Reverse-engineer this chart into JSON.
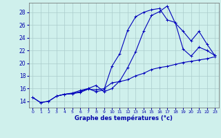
{
  "xlabel": "Graphe des températures (°c)",
  "background_color": "#cff0ec",
  "grid_color": "#aacccc",
  "line_color": "#0000bb",
  "xlim": [
    -0.5,
    23.5
  ],
  "ylim": [
    13.0,
    29.5
  ],
  "yticks": [
    14,
    16,
    18,
    20,
    22,
    24,
    26,
    28
  ],
  "xticks": [
    0,
    1,
    2,
    3,
    4,
    5,
    6,
    7,
    8,
    9,
    10,
    11,
    12,
    13,
    14,
    15,
    16,
    17,
    18,
    19,
    20,
    21,
    22,
    23
  ],
  "line1_x": [
    0,
    1,
    2,
    3,
    4,
    5,
    6,
    7,
    8,
    9,
    10,
    11,
    12,
    13,
    14,
    15,
    16,
    17,
    18,
    19,
    20,
    21,
    22,
    23
  ],
  "line1_y": [
    14.6,
    13.8,
    14.0,
    14.8,
    15.1,
    15.2,
    15.4,
    15.9,
    15.8,
    16.0,
    16.9,
    17.1,
    17.4,
    18.0,
    18.4,
    19.0,
    19.3,
    19.5,
    19.8,
    20.1,
    20.3,
    20.5,
    20.7,
    21.0
  ],
  "line2_x": [
    0,
    1,
    2,
    3,
    4,
    5,
    6,
    7,
    8,
    9,
    10,
    11,
    12,
    13,
    14,
    15,
    16,
    17,
    18,
    19,
    20,
    21,
    22,
    23
  ],
  "line2_y": [
    14.6,
    13.8,
    14.0,
    14.8,
    15.1,
    15.2,
    15.5,
    16.0,
    15.5,
    15.8,
    19.5,
    21.5,
    25.2,
    27.3,
    28.0,
    28.4,
    28.6,
    26.8,
    26.4,
    22.2,
    21.1,
    22.5,
    22.0,
    21.2
  ],
  "line3_x": [
    3,
    4,
    5,
    6,
    7,
    8,
    9,
    10,
    11,
    12,
    13,
    14,
    15,
    16,
    17,
    18,
    19,
    20,
    21,
    22,
    23
  ],
  "line3_y": [
    14.8,
    15.1,
    15.3,
    15.7,
    16.0,
    16.5,
    15.5,
    16.0,
    17.2,
    19.3,
    21.8,
    25.0,
    27.5,
    28.1,
    29.0,
    26.3,
    25.0,
    23.5,
    25.0,
    23.0,
    21.2
  ]
}
